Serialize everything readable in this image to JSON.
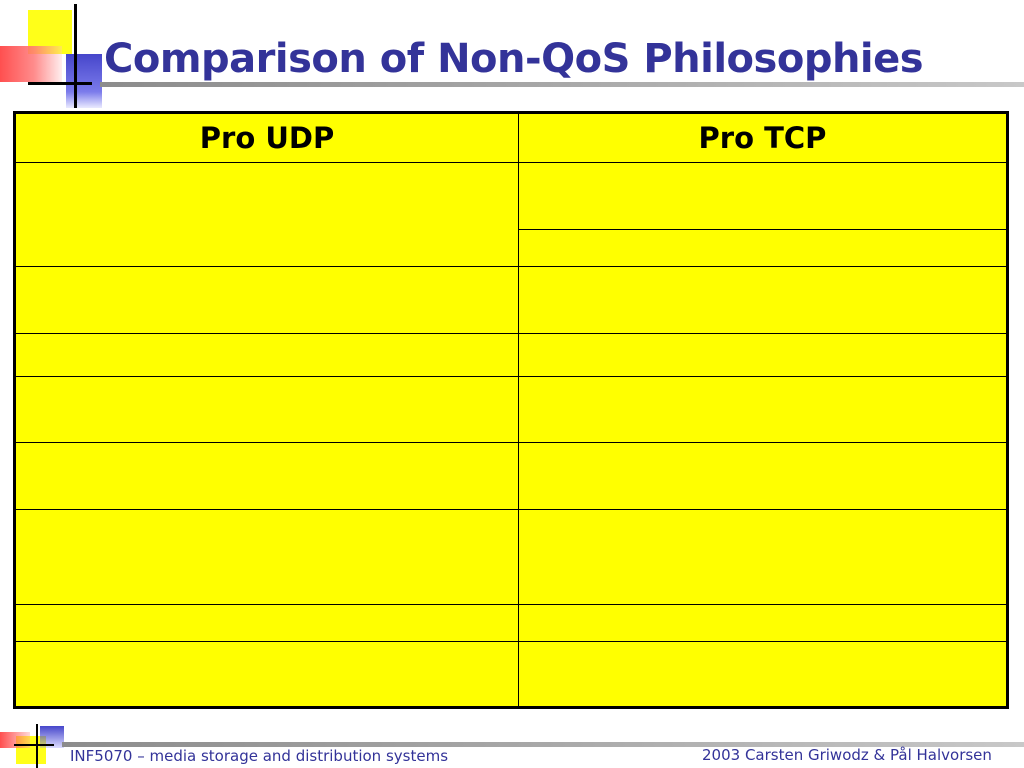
{
  "slide": {
    "title": "Comparison of Non-QoS Philosophies"
  },
  "table": {
    "headers": [
      "Pro UDP",
      "Pro TCP"
    ],
    "rows": [
      {
        "left": "",
        "right": [
          "",
          ""
        ]
      },
      {
        "left": "",
        "right": [
          ""
        ]
      },
      {
        "left": "",
        "right": [
          ""
        ]
      },
      {
        "left": "",
        "right": [
          ""
        ]
      },
      {
        "left": "",
        "right": [
          ""
        ]
      },
      {
        "left": "",
        "right": [
          ""
        ]
      },
      {
        "left": "",
        "right": [
          ""
        ]
      },
      {
        "left": "",
        "right": [
          ""
        ]
      }
    ]
  },
  "footer": {
    "course": "INF5070 – media storage and distribution systems",
    "copyright": "2003  Carsten Griwodz & Pål Halvorsen"
  },
  "colors": {
    "title": "#333399",
    "table_fill": "#ffff00",
    "border": "#000000"
  }
}
